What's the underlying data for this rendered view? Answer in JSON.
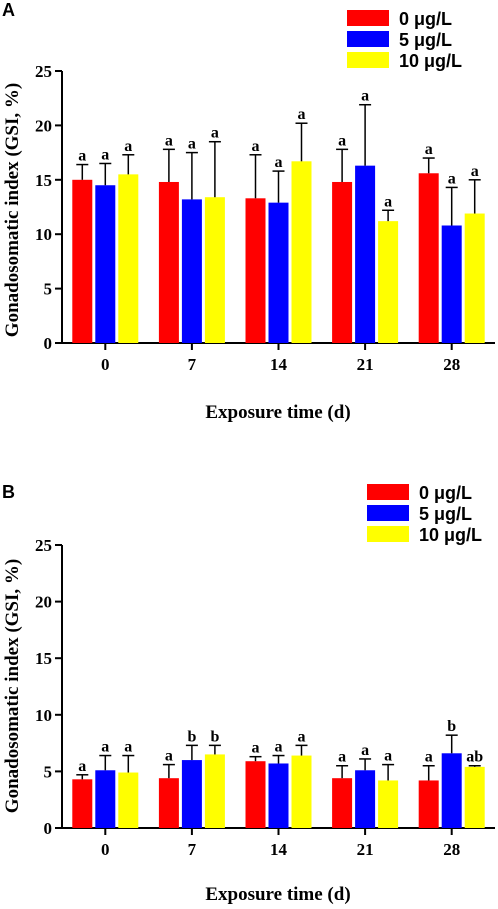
{
  "colors": {
    "0 μg/L": "#ff0000",
    "5 μg/L": "#0000ff",
    "10 μg/L": "#ffff00"
  },
  "chart_data": [
    {
      "type": "bar",
      "panel": "A",
      "xlabel": "Exposure time (d)",
      "ylabel": "Gonadosomatic index (GSI, %)",
      "ylim": [
        0,
        25
      ],
      "yticks": [
        0,
        5,
        10,
        15,
        20,
        25
      ],
      "categories": [
        "0",
        "7",
        "14",
        "21",
        "28"
      ],
      "legend": "top-right",
      "series": [
        {
          "name": "0 μg/L",
          "color": "#ff0000",
          "values": [
            15.0,
            14.8,
            13.3,
            14.8,
            15.6
          ],
          "errors": [
            1.4,
            3.0,
            4.0,
            3.0,
            1.4
          ],
          "labels": [
            "a",
            "a",
            "a",
            "a",
            "a"
          ]
        },
        {
          "name": "5 μg/L",
          "color": "#0000ff",
          "values": [
            14.5,
            13.2,
            12.9,
            16.3,
            10.8
          ],
          "errors": [
            2.0,
            4.3,
            2.9,
            5.6,
            3.5
          ],
          "labels": [
            "a",
            "a",
            "a",
            "a",
            "a"
          ]
        },
        {
          "name": "10 μg/L",
          "color": "#ffff00",
          "values": [
            15.5,
            13.4,
            16.7,
            11.2,
            11.9
          ],
          "errors": [
            1.8,
            5.1,
            3.5,
            1.0,
            3.1
          ],
          "labels": [
            "a",
            "a",
            "a",
            "a",
            "a"
          ]
        }
      ]
    },
    {
      "type": "bar",
      "panel": "B",
      "xlabel": "Exposure time (d)",
      "ylabel": "Gonadosomatic index (GSI, %)",
      "ylim": [
        0,
        25
      ],
      "yticks": [
        0,
        5,
        10,
        15,
        20,
        25
      ],
      "categories": [
        "0",
        "7",
        "14",
        "21",
        "28"
      ],
      "legend": "top-right",
      "series": [
        {
          "name": "0 μg/L",
          "color": "#ff0000",
          "values": [
            4.3,
            4.4,
            5.9,
            4.4,
            4.2
          ],
          "errors": [
            0.4,
            1.2,
            0.4,
            1.1,
            1.3
          ],
          "labels": [
            "a",
            "a",
            "a",
            "a",
            "a"
          ]
        },
        {
          "name": "5 μg/L",
          "color": "#0000ff",
          "values": [
            5.1,
            6.0,
            5.7,
            5.1,
            6.6
          ],
          "errors": [
            1.3,
            1.3,
            0.7,
            1.0,
            1.6
          ],
          "labels": [
            "a",
            "b",
            "a",
            "a",
            "b"
          ]
        },
        {
          "name": "10 μg/L",
          "color": "#ffff00",
          "values": [
            4.9,
            6.5,
            6.4,
            4.2,
            5.4
          ],
          "errors": [
            1.5,
            0.8,
            0.9,
            1.4,
            0.1
          ],
          "labels": [
            "a",
            "b",
            "a",
            "a",
            "ab"
          ]
        }
      ]
    }
  ]
}
